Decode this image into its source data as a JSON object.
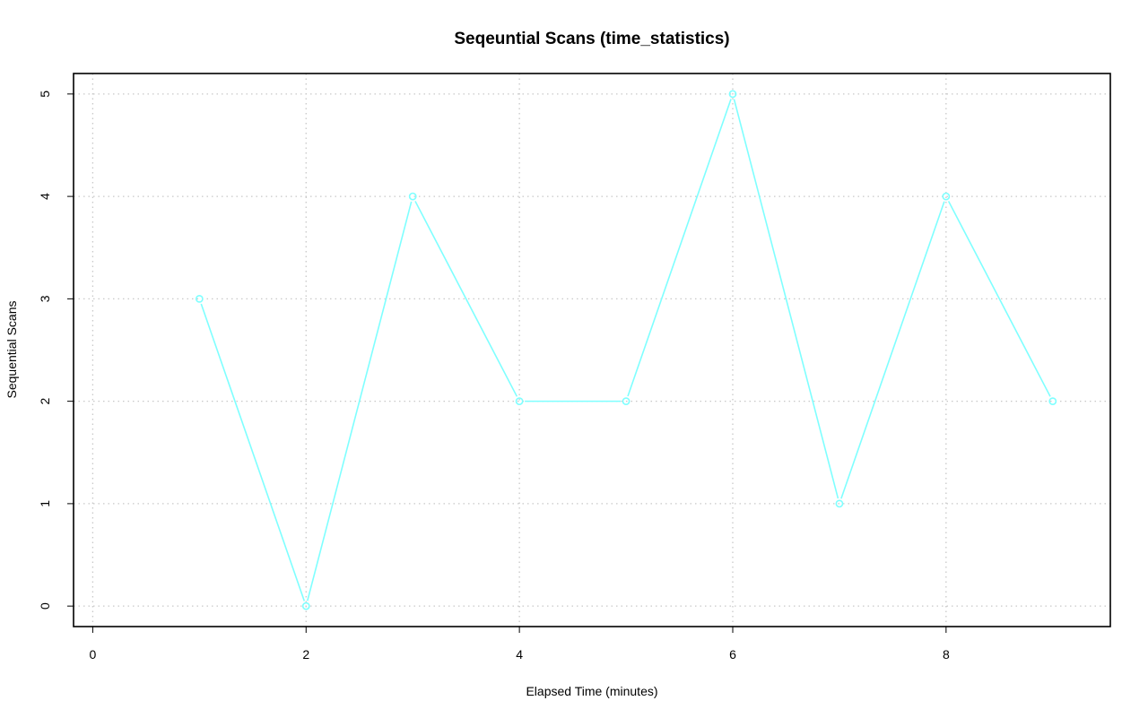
{
  "chart_data": {
    "type": "line",
    "title": "Seqeuntial Scans (time_statistics)",
    "xlabel": "Elapsed Time (minutes)",
    "ylabel": "Sequential Scans",
    "xlim": [
      -0.18,
      9.54
    ],
    "ylim": [
      -0.2,
      5.2
    ],
    "x_ticks": [
      0,
      2,
      4,
      6,
      8
    ],
    "y_ticks": [
      0,
      1,
      2,
      3,
      4,
      5
    ],
    "grid": true,
    "grid_x": [
      0,
      2,
      4,
      6,
      8
    ],
    "grid_y": [
      0,
      1,
      2,
      3,
      4,
      5
    ],
    "series": [
      {
        "color": "#7fffff",
        "marker": "circle",
        "x": [
          1,
          2,
          3,
          4,
          5,
          6,
          7,
          8,
          9
        ],
        "y": [
          3,
          0,
          4,
          2,
          2,
          5,
          1,
          4,
          2
        ]
      }
    ]
  }
}
